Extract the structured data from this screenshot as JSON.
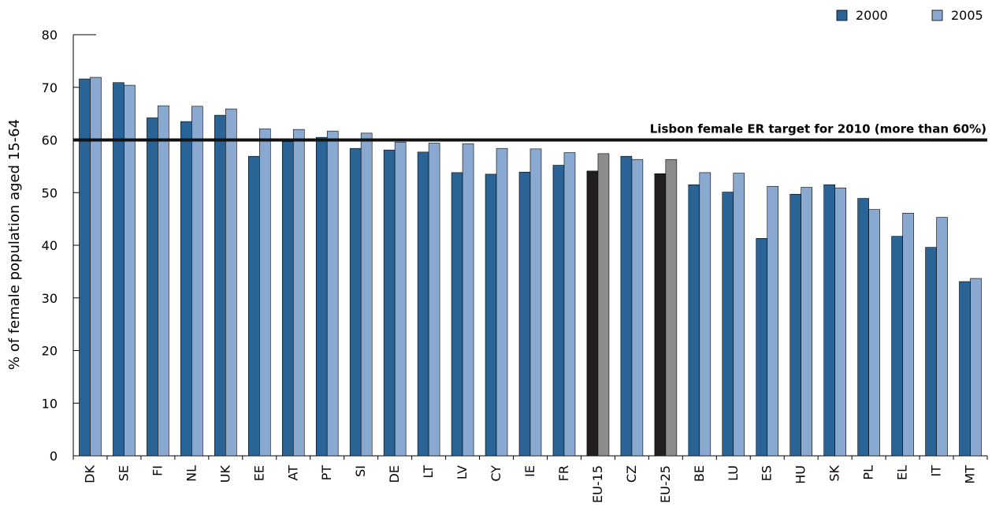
{
  "chart_data": {
    "type": "bar",
    "ylabel": "% of female population aged 15-64",
    "xlabel": "",
    "ylim": [
      0,
      80
    ],
    "yticks": [
      0,
      10,
      20,
      30,
      40,
      50,
      60,
      70,
      80
    ],
    "legend_position": "top-right",
    "categories": [
      "DK",
      "SE",
      "FI",
      "NL",
      "UK",
      "EE",
      "AT",
      "PT",
      "SI",
      "DE",
      "LT",
      "LV",
      "CY",
      "IE",
      "FR",
      "EU-15",
      "CZ",
      "EU-25",
      "BE",
      "LU",
      "ES",
      "HU",
      "SK",
      "PL",
      "EL",
      "IT",
      "MT"
    ],
    "series": [
      {
        "name": "2000",
        "color": "#2a6496",
        "highlight_color": "#231f20",
        "values": [
          71.6,
          70.9,
          64.2,
          63.5,
          64.7,
          56.9,
          59.7,
          60.5,
          58.4,
          58.1,
          57.7,
          53.8,
          53.5,
          53.9,
          55.2,
          54.1,
          56.9,
          53.6,
          51.5,
          50.1,
          41.3,
          49.7,
          51.5,
          48.9,
          41.7,
          39.6,
          33.1
        ]
      },
      {
        "name": "2005",
        "color": "#8aa9d1",
        "highlight_color": "#8c8c8c",
        "values": [
          71.9,
          70.4,
          66.5,
          66.4,
          65.9,
          62.1,
          62.0,
          61.7,
          61.3,
          59.6,
          59.4,
          59.3,
          58.4,
          58.3,
          57.6,
          57.4,
          56.3,
          56.3,
          53.8,
          53.7,
          51.2,
          51.0,
          50.9,
          46.8,
          46.1,
          45.3,
          33.7
        ]
      }
    ],
    "highlight_categories": [
      "EU-15",
      "EU-25"
    ],
    "reference_line": {
      "value": 60,
      "label": "Lisbon female  ER target for 2010 (more than 60%)"
    }
  }
}
